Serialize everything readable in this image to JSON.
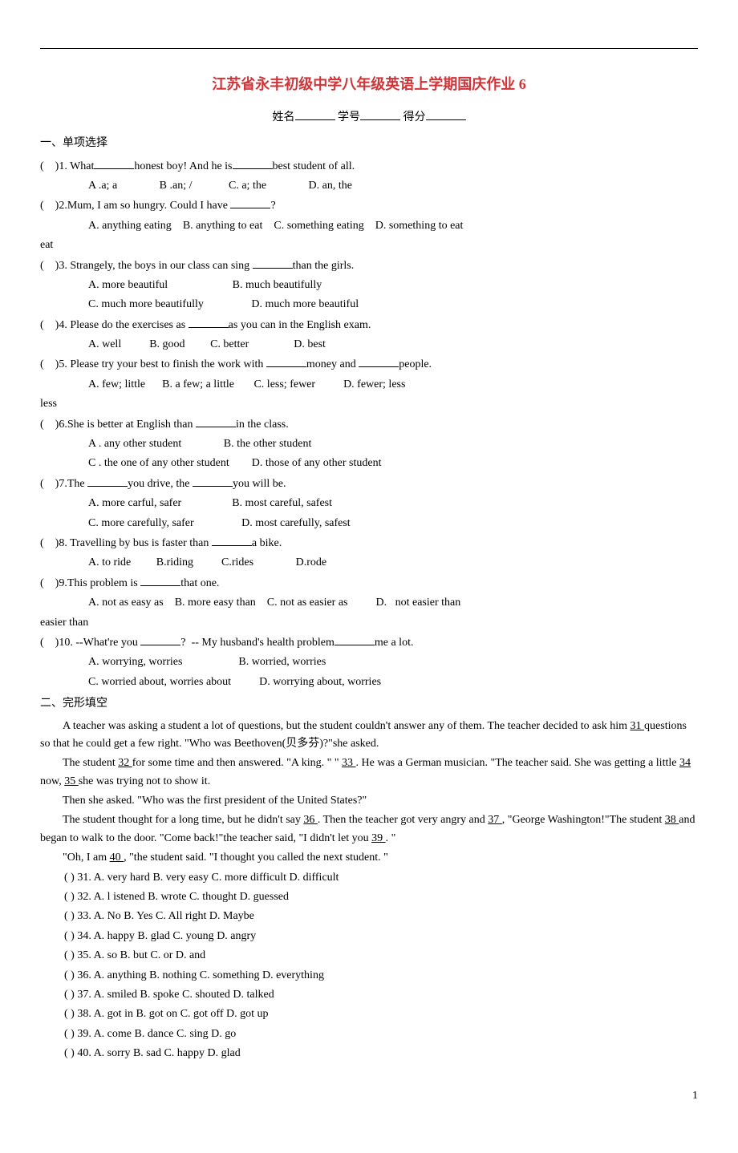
{
  "title": "江苏省永丰初级中学八年级英语上学期国庆作业 6",
  "nameLabel": "姓名",
  "idLabel": "学号",
  "scoreLabel": "得分",
  "section1": "一、单项选择",
  "q1": {
    "prefix": "(    )1. What",
    "text": "honest boy! And he is",
    "text2": "best student of all.",
    "optA": "A .a; a",
    "optB": "B .an; /",
    "optC": "C. a; the",
    "optD": "D. an, the"
  },
  "q2": {
    "prefix": "(    )2.Mum, I am so hungry. Could I have ",
    "text2": "?",
    "optA": "A. anything eating",
    "optB": "B. anything to eat",
    "optC": "C. something eating",
    "optD": "D. something to eat"
  },
  "q3": {
    "prefix": "(    )3. Strangely, the boys in our class can sing ",
    "text2": "than the girls.",
    "optA": "A. more beautiful",
    "optB": "B. much beautifully",
    "optC": "C. much more beautifully",
    "optD": "D. much more beautiful"
  },
  "q4": {
    "prefix": "(    )4. Please do the exercises as ",
    "text2": "as you can in the English exam.",
    "optA": "A. well",
    "optB": "B. good",
    "optC": "C. better",
    "optD": "D. best"
  },
  "q5": {
    "prefix": "(    )5. Please try your best to finish the work with ",
    "text2": "money and ",
    "text3": "people.",
    "optA": "A. few; little",
    "optB": "B. a few; a little",
    "optC": "C. less; fewer",
    "optD": "D. fewer; less"
  },
  "q6": {
    "prefix": "(    )6.She is better at English than ",
    "text2": "in the class.",
    "optA": "A . any other student",
    "optB": "B. the other student",
    "optC": "C . the one of any other student",
    "optD": "D. those of any other student"
  },
  "q7": {
    "prefix": "(    )7.The ",
    "text2": "you drive, the ",
    "text3": "you will be.",
    "optA": "A. more carful, safer",
    "optB": "B. most careful, safest",
    "optC": "C. more carefully, safer",
    "optD": "D. most carefully, safest"
  },
  "q8": {
    "prefix": "(    )8. Travelling by bus is faster than ",
    "text2": "a bike.",
    "optA": "A. to ride",
    "optB": "B.riding",
    "optC": "C.rides",
    "optD": "D.rode"
  },
  "q9": {
    "prefix": "(    )9.This problem is ",
    "text2": "that one.",
    "optA": "A. not as easy as",
    "optB": "B. more easy than",
    "optC": "C. not as easier as",
    "optD": "D.   not easier than"
  },
  "q10": {
    "prefix": "(    )10. --What're you ",
    "text2": "?  -- My husband's health problem",
    "text3": "me a lot.",
    "optA": "A. worrying, worries",
    "optB": "B. worried, worries",
    "optC": "C. worried about, worries about",
    "optD": "D. worrying about, worries"
  },
  "section2": "二、完形填空",
  "p1a": "A teacher was asking a student a lot of questions, but the student couldn't answer any of them. The teacher decided to ask him ",
  "p1blank": "  31  ",
  "p1b": " questions so that he could get a few right. \"Who was Beethoven(贝多芬)?\"she asked.",
  "p2a": "The student ",
  "p2blank1": "  32  ",
  "p2b": " for some time and then answered. \"A king. \" \" ",
  "p2blank2": "  33  ",
  "p2c": ". He was a German musician. \"The teacher said. She was getting a little ",
  "p2blank3": "  34  ",
  "p2d": " now, ",
  "p2blank4": "  35  ",
  "p2e": " she was trying not to show it.",
  "p3": "Then she asked. \"Who was the first president of the United States?\"",
  "p4a": "The student thought for a long time, but he didn't say ",
  "p4blank1": "  36  ",
  "p4b": ". Then the teacher got very angry and ",
  "p4blank2": "  37  ",
  "p4c": ", \"George Washington!\"The student ",
  "p4blank3": "  38  ",
  "p4d": " and began to walk to the door. \"Come back!\"the teacher said, \"I didn't let you ",
  "p4blank4": "  39  ",
  "p4e": ". \"",
  "p5a": "\"Oh, I am ",
  "p5blank": "  40  ",
  "p5b": ", \"the student said. \"I thought you called the next student. \"",
  "c31": {
    "p": "(    ) 31.",
    "a": "A. very hard",
    "b": "B. very easy",
    "c": "C. more difficult",
    "d": "D. difficult"
  },
  "c32": {
    "p": "(    ) 32.",
    "a": "A. l istened",
    "b": "B. wrote",
    "c": "C. thought",
    "d": "D. guessed"
  },
  "c33": {
    "p": "(    ) 33.",
    "a": "A. No",
    "b": "B. Yes",
    "c": "C. All right",
    "d": "D. Maybe"
  },
  "c34": {
    "p": "(    ) 34.",
    "a": "A. happy",
    "b": "B. glad",
    "c": "C. young",
    "d": "D. angry"
  },
  "c35": {
    "p": "(    ) 35.",
    "a": "A. so",
    "b": "B. but",
    "c": "C. or",
    "d": "D. and"
  },
  "c36": {
    "p": "(    ) 36.",
    "a": "A. anything",
    "b": "B. nothing",
    "c": "C. something",
    "d": "D. everything"
  },
  "c37": {
    "p": "(    ) 37.",
    "a": "A. smiled",
    "b": "B. spoke",
    "c": "C. shouted",
    "d": "D. talked"
  },
  "c38": {
    "p": "(    ) 38.",
    "a": "A. got in",
    "b": "B. got on",
    "c": "C. got off",
    "d": "D. got up"
  },
  "c39": {
    "p": "(    ) 39.",
    "a": "A. come",
    "b": "B. dance",
    "c": "C. sing",
    "d": "D. go"
  },
  "c40": {
    "p": "(    ) 40.",
    "a": "A. sorry",
    "b": "B. sad",
    "c": "C. happy",
    "d": "D. glad"
  },
  "pageNum": "1"
}
